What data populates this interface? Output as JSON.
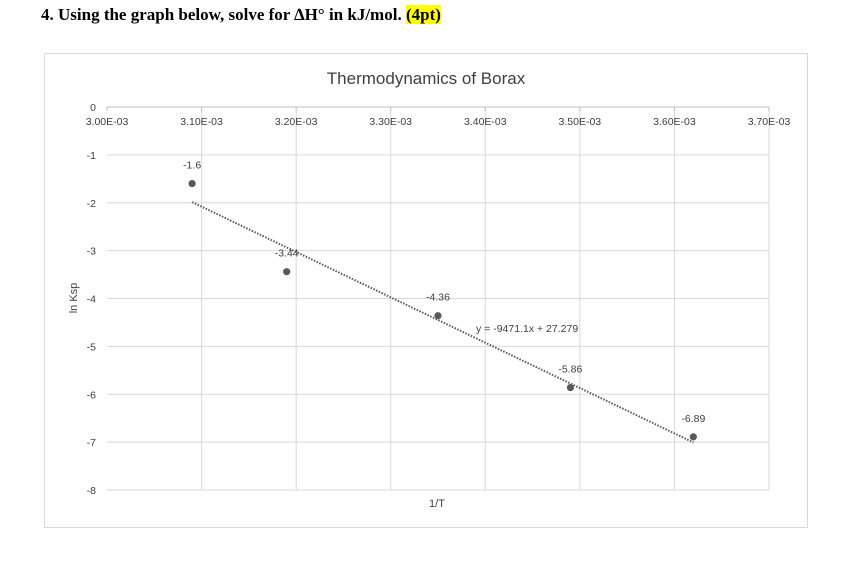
{
  "question": {
    "text": "4. Using the graph below, solve for ∆H° in kJ/mol.",
    "points": "(4pt)"
  },
  "colors": {
    "grid": "#d9d9d9",
    "point": "#595959",
    "trendline": "#595959",
    "text": "#404040"
  },
  "chart_data": {
    "type": "scatter",
    "title": "Thermodynamics of Borax",
    "xlabel": "1/T",
    "ylabel": "ln Ksp",
    "xlim": [
      0.003,
      0.0037
    ],
    "ylim": [
      -8,
      0
    ],
    "grid": true,
    "x_tick_labels": [
      "3.00E-03",
      "3.10E-03",
      "3.20E-03",
      "3.30E-03",
      "3.40E-03",
      "3.50E-03",
      "3.60E-03",
      "3.70E-03"
    ],
    "y_tick_labels": [
      "0",
      "-1",
      "-2",
      "-3",
      "-4",
      "-5",
      "-6",
      "-7",
      "-8"
    ],
    "series": [
      {
        "points": [
          {
            "x": 0.00309,
            "y": -1.6,
            "label": "-1.6"
          },
          {
            "x": 0.00319,
            "y": -3.44,
            "label": "-3.44"
          },
          {
            "x": 0.00335,
            "y": -4.36,
            "label": "-4.36"
          },
          {
            "x": 0.00349,
            "y": -5.86,
            "label": "-5.86"
          },
          {
            "x": 0.00362,
            "y": -6.89,
            "label": "-6.89"
          }
        ]
      }
    ],
    "trendline": {
      "type": "linear",
      "slope": -9471.1,
      "intercept": 27.279,
      "equation": "y = -9471.1x + 27.279",
      "style": "dotted"
    }
  }
}
